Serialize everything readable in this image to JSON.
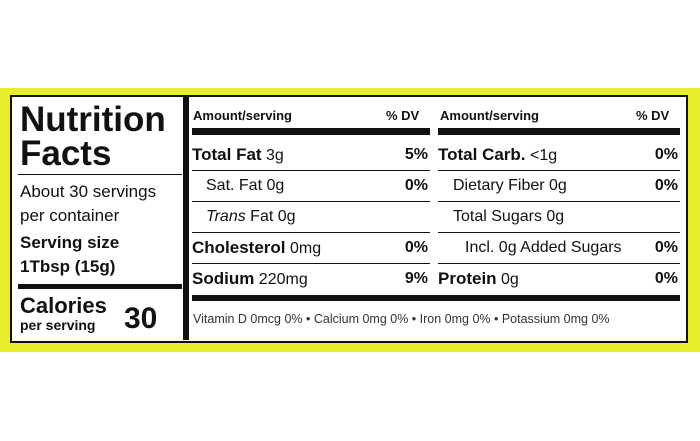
{
  "header": {
    "title1": "Nutrition",
    "title2": "Facts"
  },
  "servings": {
    "line1": "About 30 servings",
    "line2": "per container",
    "size_label": "Serving size",
    "size_value": "1Tbsp (15g)"
  },
  "calories": {
    "label": "Calories",
    "sublabel": "per serving",
    "value": "30"
  },
  "columns": [
    {
      "amount_header": "Amount/serving",
      "dv_header": "% DV",
      "rows": [
        {
          "name": "Total Fat",
          "amount": "3g",
          "dv": "5%"
        },
        {
          "name": "Sat. Fat",
          "amount": "0g",
          "dv": "0%"
        },
        {
          "name": "Trans",
          "name_rest": "Fat",
          "amount": "0g"
        },
        {
          "name": "Cholesterol",
          "amount": "0mg",
          "dv": "0%"
        },
        {
          "name": "Sodium",
          "amount": "220mg",
          "dv": "9%"
        }
      ]
    },
    {
      "amount_header": "Amount/serving",
      "dv_header": "% DV",
      "rows": [
        {
          "name": "Total Carb.",
          "amount": "<1g",
          "dv": "0%"
        },
        {
          "name": "Dietary Fiber",
          "amount": "0g",
          "dv": "0%"
        },
        {
          "name": "Total Sugars",
          "amount": "0g"
        },
        {
          "name": "Incl. 0g Added Sugars",
          "dv": "0%"
        },
        {
          "name": "Protein",
          "amount": "0g",
          "dv": "0%"
        }
      ]
    }
  ],
  "footnote": "Vitamin D 0mcg 0% • Calcium 0mg 0% • Iron 0mg 0% • Potassium 0mg 0%"
}
